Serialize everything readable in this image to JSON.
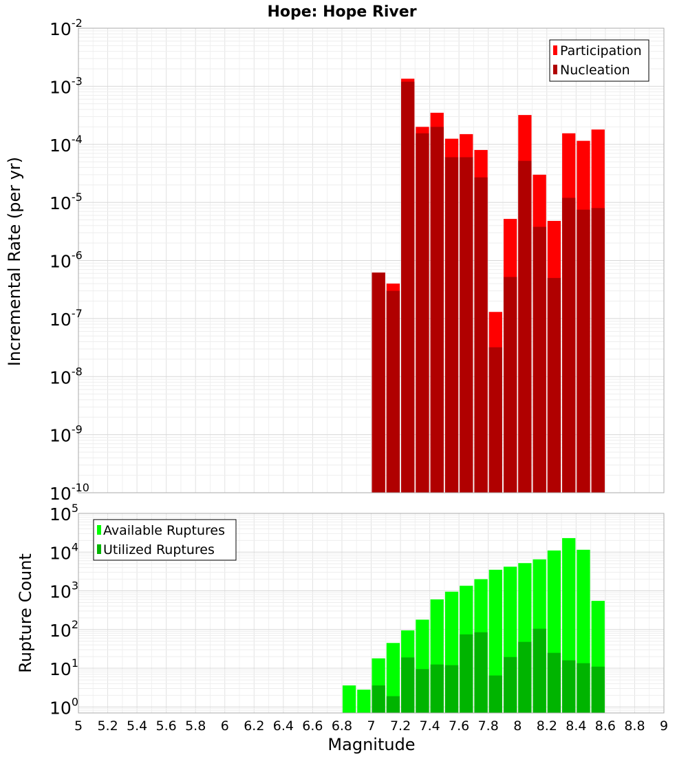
{
  "title": "Hope: Hope River",
  "chart_data": [
    {
      "type": "bar",
      "title": "Hope: Hope River",
      "xlabel": "",
      "ylabel": "Incremental Rate (per yr)",
      "xlim": [
        5,
        9
      ],
      "ylim": [
        1e-10,
        0.01
      ],
      "y_scale": "log",
      "grid": true,
      "legend_position": "top-right",
      "x": [
        7.0,
        7.1,
        7.2,
        7.3,
        7.4,
        7.5,
        7.6,
        7.7,
        7.8,
        7.9,
        8.0,
        8.1,
        8.2,
        8.3,
        8.4,
        8.5
      ],
      "series": [
        {
          "name": "Participation",
          "color": "#ff0000",
          "values": [
            6.2e-07,
            4e-07,
            0.00135,
            0.0002,
            0.00035,
            0.000125,
            0.00015,
            8e-05,
            1.3e-07,
            5.2e-06,
            0.00032,
            3e-05,
            4.8e-06,
            0.000155,
            0.000115,
            0.00018
          ]
        },
        {
          "name": "Nucleation",
          "color": "#b00000",
          "values": [
            6.2e-07,
            3e-07,
            0.0012,
            0.000155,
            0.0002,
            6e-05,
            6e-05,
            2.7e-05,
            3.2e-08,
            5.2e-07,
            5.2e-05,
            3.8e-06,
            5e-07,
            1.2e-05,
            7.5e-06,
            8e-06
          ]
        }
      ],
      "y_ticks": [
        {
          "base": "10",
          "exp": "-2"
        },
        {
          "base": "10",
          "exp": "-3"
        },
        {
          "base": "10",
          "exp": "-4"
        },
        {
          "base": "10",
          "exp": "-5"
        },
        {
          "base": "10",
          "exp": "-6"
        },
        {
          "base": "10",
          "exp": "-7"
        },
        {
          "base": "10",
          "exp": "-8"
        },
        {
          "base": "10",
          "exp": "-9"
        },
        {
          "base": "10",
          "exp": "-10"
        }
      ]
    },
    {
      "type": "bar",
      "title": "",
      "xlabel": "Magnitude",
      "ylabel": "Rupture Count",
      "xlim": [
        5,
        9
      ],
      "ylim": [
        0.7,
        100000
      ],
      "y_scale": "log",
      "grid": true,
      "legend_position": "top-left",
      "x": [
        6.8,
        6.9,
        7.0,
        7.1,
        7.2,
        7.3,
        7.4,
        7.5,
        7.6,
        7.7,
        7.8,
        7.9,
        8.0,
        8.1,
        8.2,
        8.3,
        8.4,
        8.5
      ],
      "series": [
        {
          "name": "Available Ruptures",
          "color": "#00ff00",
          "values": [
            3.6,
            2.8,
            18,
            45,
            95,
            180,
            600,
            950,
            1350,
            2000,
            3500,
            4200,
            5200,
            6500,
            11000,
            23000,
            11500,
            550
          ]
        },
        {
          "name": "Utilized Ruptures",
          "color": "#00b400",
          "values": [
            0,
            0,
            3.6,
            1.9,
            19,
            9.5,
            12.5,
            12,
            75,
            85,
            6.5,
            19.5,
            48,
            105,
            25,
            16,
            13.5,
            11
          ]
        }
      ],
      "x_ticks": [
        "5",
        "5.2",
        "5.4",
        "5.6",
        "5.8",
        "6",
        "6.2",
        "6.4",
        "6.6",
        "6.8",
        "7",
        "7.2",
        "7.4",
        "7.6",
        "7.8",
        "8",
        "8.2",
        "8.4",
        "8.6",
        "8.8",
        "9"
      ],
      "y_ticks": [
        {
          "base": "10",
          "exp": "5"
        },
        {
          "base": "10",
          "exp": "4"
        },
        {
          "base": "10",
          "exp": "3"
        },
        {
          "base": "10",
          "exp": "2"
        },
        {
          "base": "10",
          "exp": "1"
        },
        {
          "base": "10",
          "exp": "0"
        }
      ]
    }
  ]
}
